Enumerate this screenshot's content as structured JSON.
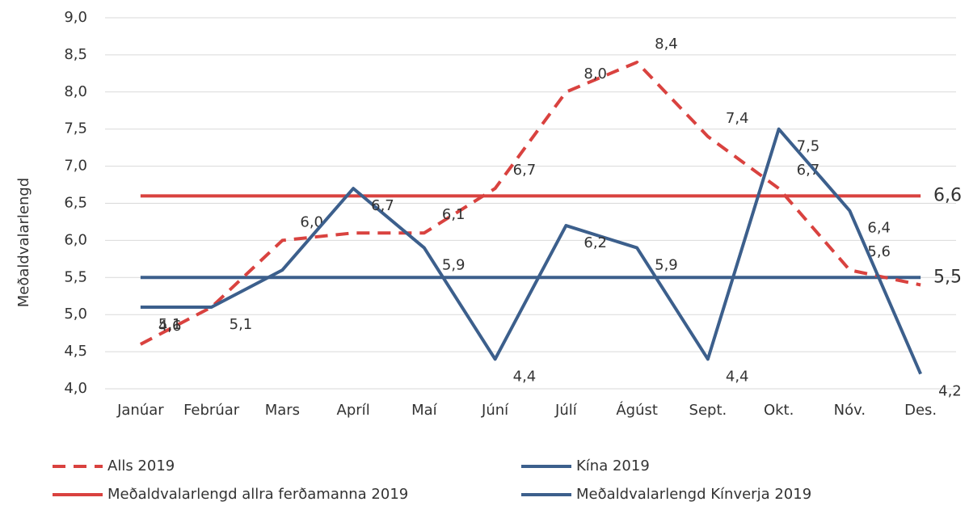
{
  "chart_data": {
    "type": "line",
    "y_label": "Meðaldvalarlengd",
    "categories": [
      "Janúar",
      "Febrúar",
      "Mars",
      "Apríl",
      "Maí",
      "Júní",
      "Júlí",
      "Ágúst",
      "Sept.",
      "Okt.",
      "Nóv.",
      "Des."
    ],
    "series": [
      {
        "name": "Alls 2019",
        "color": "#d9423f",
        "dashed": true,
        "values": [
          4.6,
          5.1,
          6.0,
          6.1,
          6.1,
          6.7,
          8.0,
          8.4,
          7.4,
          6.7,
          5.6,
          5.4
        ],
        "value_labels": [
          "4,6",
          null,
          "6,0",
          null,
          "6,1",
          "6,7",
          "8,0",
          "8,4",
          "7,4",
          "6,7",
          "5,6",
          null
        ]
      },
      {
        "name": "Kína 2019",
        "color": "#3c5f8c",
        "dashed": false,
        "values": [
          5.1,
          5.1,
          5.6,
          6.7,
          5.9,
          4.4,
          6.2,
          5.9,
          4.4,
          7.5,
          6.4,
          4.2
        ],
        "value_labels": [
          "5,1",
          "5,1",
          null,
          "6,7",
          "5,9",
          "4,4",
          "6,2",
          "5,9",
          "4,4",
          "7,5",
          "6,4",
          "4,2"
        ]
      }
    ],
    "reference_lines": [
      {
        "name": "Meðaldvalarlengd allra ferðamanna 2019",
        "color": "#d9423f",
        "value": 6.6,
        "value_label": "6,6"
      },
      {
        "name": "Meðaldvalarlengd Kínverja 2019",
        "color": "#3c5f8c",
        "value": 5.5,
        "value_label": "5,5"
      }
    ],
    "ylim": [
      4.0,
      9.0
    ],
    "yticks": [
      {
        "value": 4.0,
        "label": "4,0"
      },
      {
        "value": 4.5,
        "label": "4,5"
      },
      {
        "value": 5.0,
        "label": "5,0"
      },
      {
        "value": 5.5,
        "label": "5,5"
      },
      {
        "value": 6.0,
        "label": "6,0"
      },
      {
        "value": 6.5,
        "label": "6,5"
      },
      {
        "value": 7.0,
        "label": "7,0"
      },
      {
        "value": 7.5,
        "label": "7,5"
      },
      {
        "value": 8.0,
        "label": "8,0"
      },
      {
        "value": 8.5,
        "label": "8,5"
      },
      {
        "value": 9.0,
        "label": "9,0"
      }
    ],
    "grid": true
  }
}
